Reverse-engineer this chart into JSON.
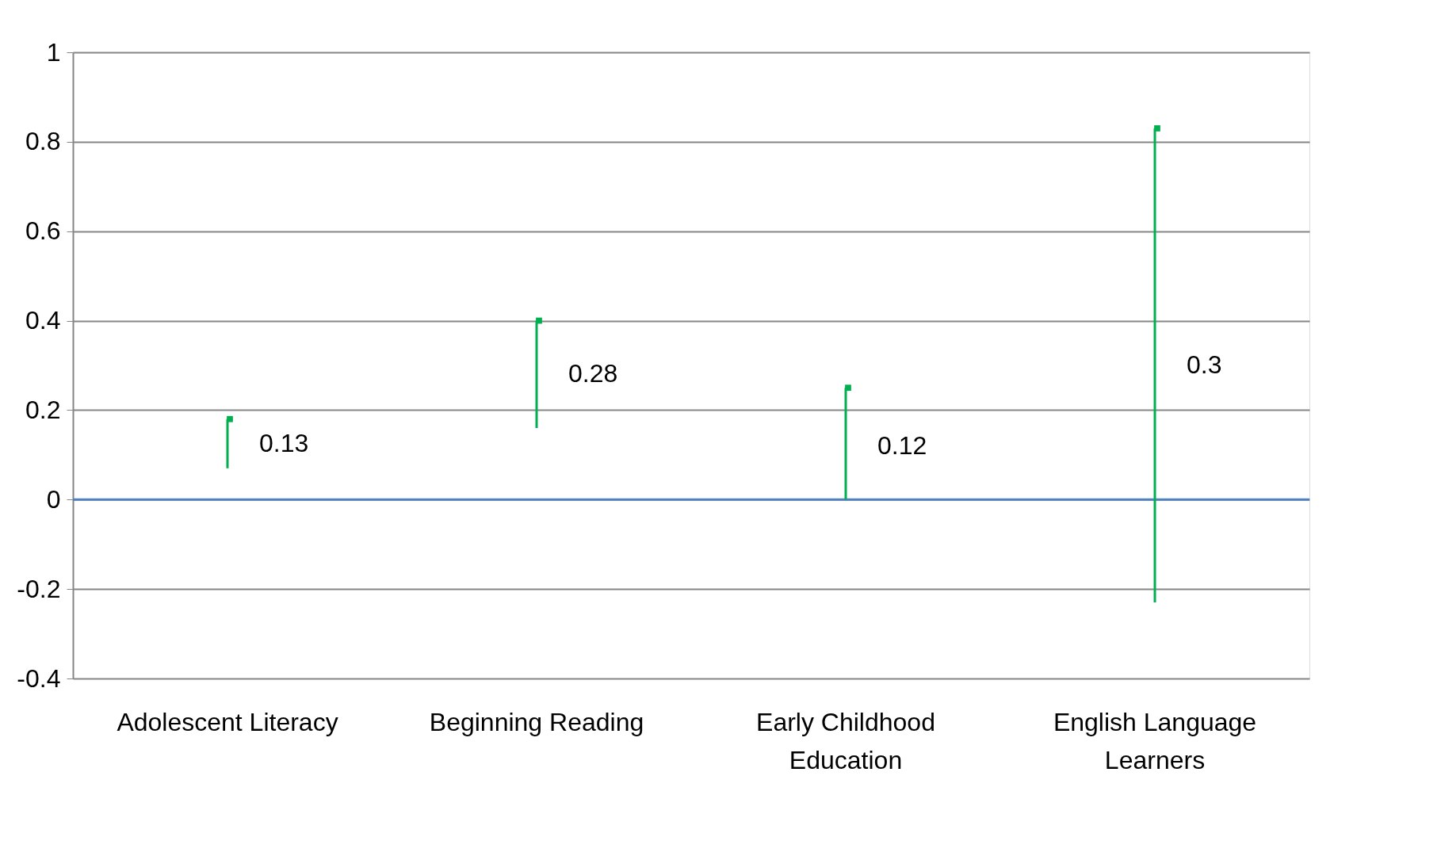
{
  "chart_data": {
    "type": "scatter",
    "categories": [
      "Adolescent Literacy",
      "Beginning Reading",
      "Early Childhood Education",
      "English Language Learners"
    ],
    "series": [
      {
        "color": "#00b050",
        "marker": "square",
        "values": [
          0.18,
          0.4,
          0.25,
          0.83
        ],
        "errors": [
          [
            0.07,
            0.18
          ],
          [
            0.16,
            0.4
          ],
          [
            0.0,
            0.25
          ],
          [
            -0.23,
            0.83
          ]
        ]
      }
    ],
    "annotations": [
      {
        "text": "0.13",
        "x": "Adolescent Literacy",
        "y": 0.125
      },
      {
        "text": "0.28",
        "x": "Beginning Reading",
        "y": 0.28
      },
      {
        "text": "0.12",
        "x": "Early Childhood Education",
        "y": 0.12
      },
      {
        "text": "0.3",
        "x": "English Language Learners",
        "y": 0.3
      }
    ],
    "ylim": [
      -0.4,
      1
    ],
    "yticks": [
      -0.4,
      -0.2,
      0,
      0.2,
      0.4,
      0.6,
      0.8,
      1
    ],
    "grid": "y",
    "ref_lines": [
      {
        "axis": "y",
        "value": 0,
        "color": "#4f81bd"
      }
    ]
  }
}
